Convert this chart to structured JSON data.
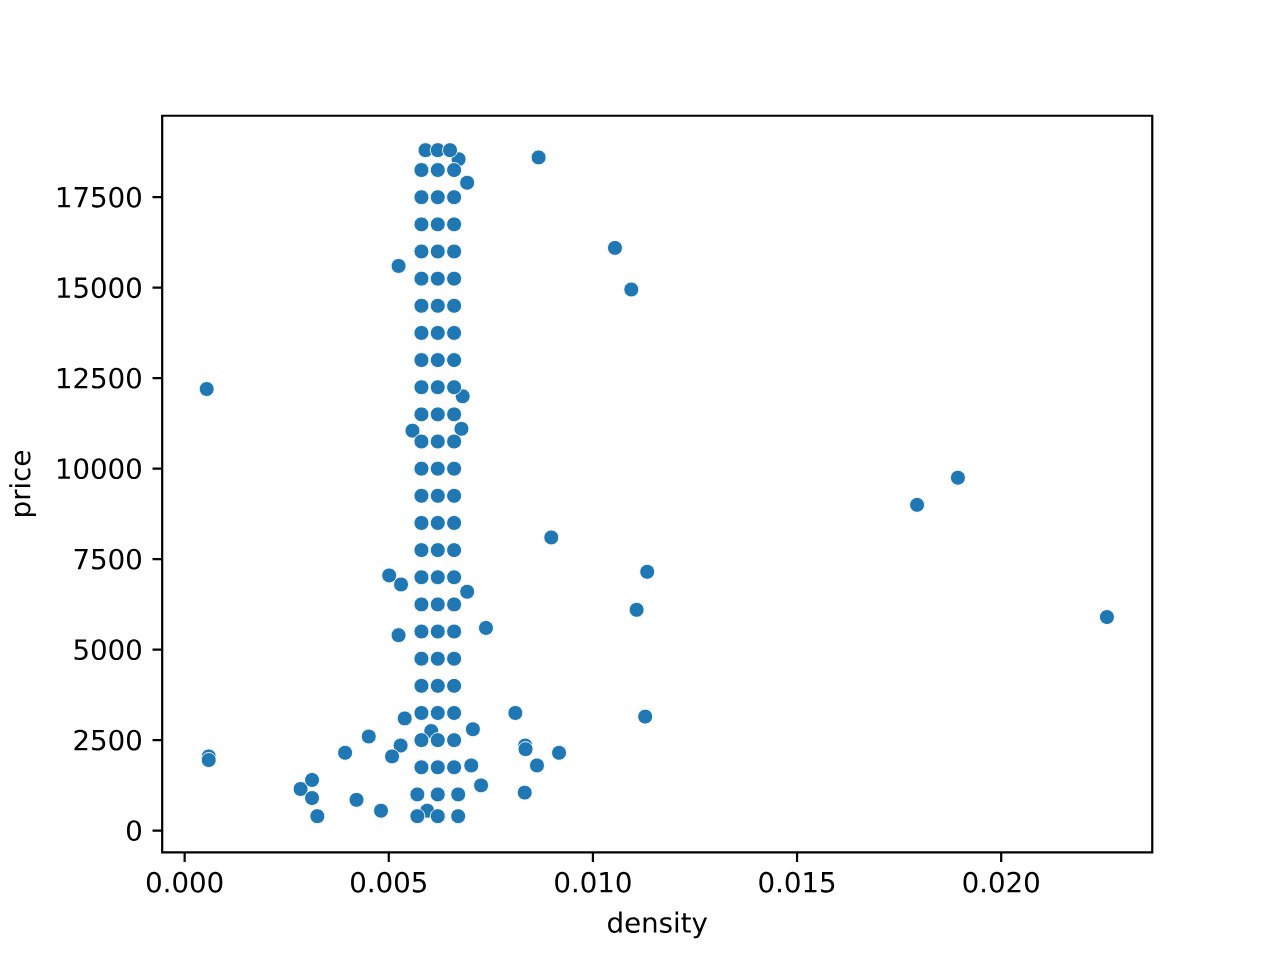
{
  "chart_data": {
    "type": "scatter",
    "xlabel": "density",
    "ylabel": "price",
    "color": "#1f77b4",
    "xlim": [
      -0.00055,
      0.0237
    ],
    "ylim": [
      -600,
      19750
    ],
    "xticks": [
      {
        "value": 0,
        "label": "0.000"
      },
      {
        "value": 0.005,
        "label": "0.005"
      },
      {
        "value": 0.01,
        "label": "0.010"
      },
      {
        "value": 0.015,
        "label": "0.015"
      },
      {
        "value": 0.02,
        "label": "0.020"
      }
    ],
    "yticks": [
      0,
      2500,
      5000,
      7500,
      10000,
      12500,
      15000,
      17500
    ],
    "x": [
      0.00054,
      0.00059,
      0.00059,
      0.00524,
      0.00867,
      0.01054,
      0.01094,
      0.00898,
      0.01133,
      0.01107,
      0.01128,
      0.00501,
      0.0053,
      0.00524,
      0.00738,
      0.0081,
      0.00539,
      0.00451,
      0.00393,
      0.00529,
      0.00508,
      0.00834,
      0.00835,
      0.00863,
      0.00917,
      0.00726,
      0.00833,
      0.00284,
      0.00312,
      0.00312,
      0.00325,
      0.00421,
      0.00481,
      0.00604,
      0.00594,
      0.01794,
      0.01894,
      0.02259,
      0.00671,
      0.00692,
      0.00681,
      0.00678,
      0.00558,
      0.00702,
      0.00706,
      0.00692,
      0.0057,
      0.0062,
      0.0067,
      0.0057,
      0.0062,
      0.0067,
      0.0058,
      0.0062,
      0.0066,
      0.0058,
      0.0062,
      0.0066,
      0.0058,
      0.0062,
      0.0066,
      0.0058,
      0.0062,
      0.0066,
      0.0058,
      0.0062,
      0.0066,
      0.0058,
      0.0062,
      0.0066,
      0.0058,
      0.0062,
      0.0066,
      0.0058,
      0.0062,
      0.0066,
      0.0058,
      0.0062,
      0.0066,
      0.0058,
      0.0062,
      0.0066,
      0.0058,
      0.0062,
      0.0066,
      0.0058,
      0.0062,
      0.0066,
      0.0058,
      0.0062,
      0.0066,
      0.0058,
      0.0062,
      0.0066,
      0.0058,
      0.0062,
      0.0066,
      0.0058,
      0.0062,
      0.0066,
      0.0058,
      0.0062,
      0.0066,
      0.0058,
      0.0062,
      0.0066,
      0.0058,
      0.0062,
      0.0066,
      0.0058,
      0.0062,
      0.0066,
      0.0058,
      0.0062,
      0.0066,
      0.0058,
      0.0062,
      0.0066,
      0.0058,
      0.0062,
      0.0066,
      0.0059,
      0.0062,
      0.0065
    ],
    "values": [
      12200,
      2050,
      1950,
      15600,
      18600,
      16100,
      14950,
      8100,
      7150,
      6100,
      3150,
      7050,
      6800,
      5400,
      5600,
      3250,
      3100,
      2600,
      2150,
      2350,
      2050,
      2350,
      2250,
      1800,
      2150,
      1250,
      1050,
      1150,
      1400,
      900,
      400,
      850,
      550,
      2750,
      550,
      9000,
      9750,
      5900,
      18550,
      17900,
      12000,
      11100,
      11050,
      1800,
      2800,
      6600,
      400,
      400,
      400,
      1000,
      1000,
      1000,
      1750,
      1750,
      1750,
      2500,
      2500,
      2500,
      3250,
      3250,
      3250,
      4000,
      4000,
      4000,
      4750,
      4750,
      4750,
      5500,
      5500,
      5500,
      6250,
      6250,
      6250,
      7000,
      7000,
      7000,
      7750,
      7750,
      7750,
      8500,
      8500,
      8500,
      9250,
      9250,
      9250,
      10000,
      10000,
      10000,
      10750,
      10750,
      10750,
      11500,
      11500,
      11500,
      12250,
      12250,
      12250,
      13000,
      13000,
      13000,
      13750,
      13750,
      13750,
      14500,
      14500,
      14500,
      15250,
      15250,
      15250,
      16000,
      16000,
      16000,
      16750,
      16750,
      16750,
      17500,
      17500,
      17500,
      18250,
      18250,
      18250,
      18800,
      18800,
      18800
    ]
  }
}
